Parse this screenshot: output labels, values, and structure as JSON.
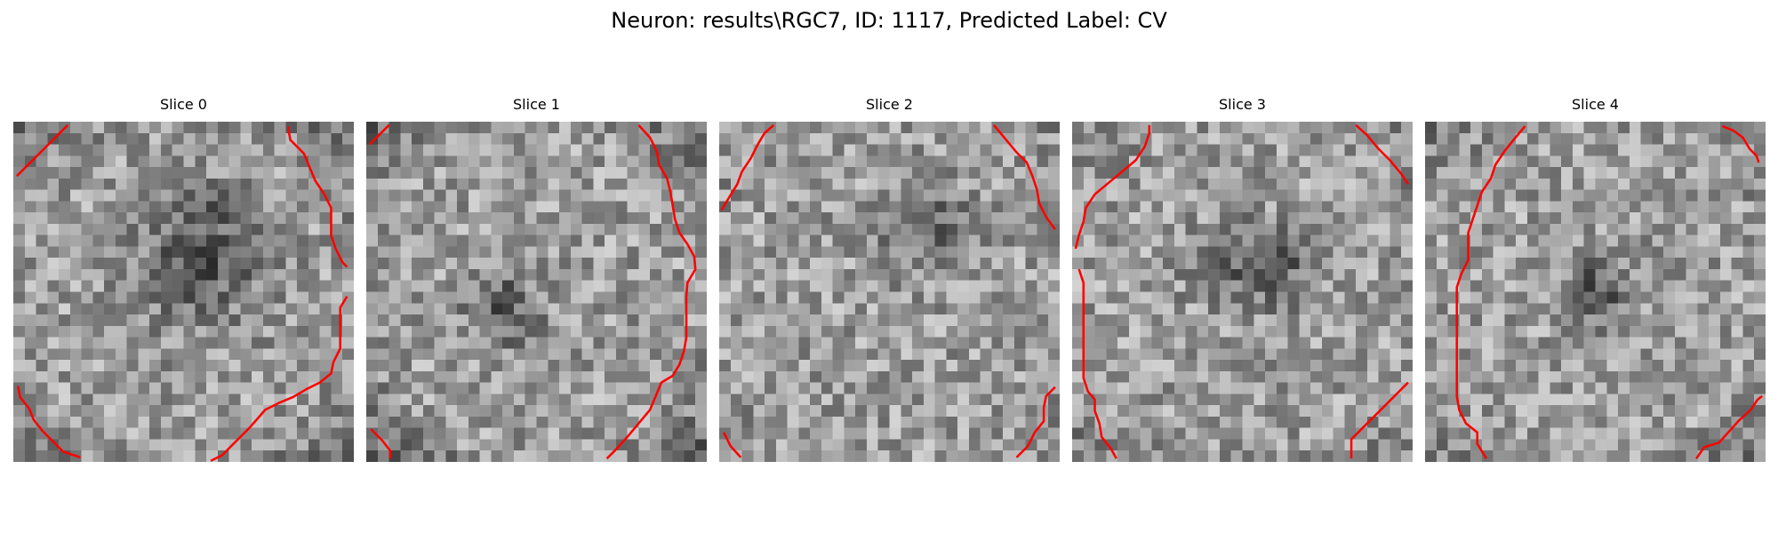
{
  "figure": {
    "title": "Neuron: results\\RGC7, ID: 1117, Predicted Label: CV"
  },
  "contour_color": "#ff0000",
  "colormap": "gray",
  "grid_size": 30,
  "panels": [
    {
      "label": "Slice 0",
      "seed": 101,
      "dark_blob": [
        0.55,
        0.38,
        0.18,
        0.2
      ],
      "ring_dark": 0.55
    },
    {
      "label": "Slice 1",
      "seed": 202,
      "dark_blob": [
        0.4,
        0.55,
        0.1,
        0.1
      ],
      "ring_dark": 0.7
    },
    {
      "label": "Slice 2",
      "seed": 303,
      "dark_blob": [
        0.6,
        0.3,
        0.12,
        0.12
      ],
      "ring_dark": 0.2
    },
    {
      "label": "Slice 3",
      "seed": 404,
      "dark_blob": [
        0.55,
        0.42,
        0.16,
        0.12
      ],
      "ring_dark": 0.3
    },
    {
      "label": "Slice 4",
      "seed": 505,
      "dark_blob": [
        0.5,
        0.5,
        0.1,
        0.1
      ],
      "ring_dark": 0.4
    }
  ]
}
